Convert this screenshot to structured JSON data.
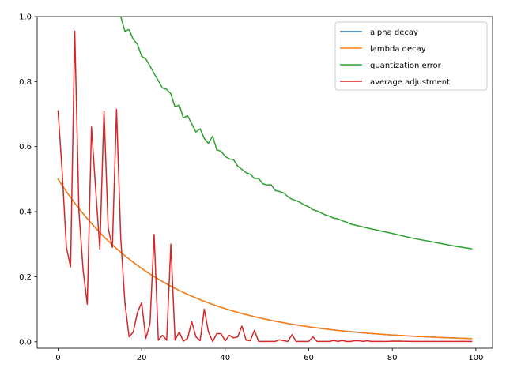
{
  "chart_data": {
    "type": "line",
    "title": "",
    "xlabel": "",
    "ylabel": "",
    "xlim": [
      -5,
      104
    ],
    "ylim": [
      -0.02,
      1.0
    ],
    "x_ticks": [
      0,
      20,
      40,
      60,
      80,
      100
    ],
    "y_ticks": [
      0.0,
      0.2,
      0.4,
      0.6,
      0.8,
      1.0
    ],
    "x_tick_labels": [
      "0",
      "20",
      "40",
      "60",
      "80",
      "100"
    ],
    "y_tick_labels": [
      "0.0",
      "0.2",
      "0.4",
      "0.6",
      "0.8",
      "1.0"
    ],
    "grid": false,
    "legend_position": "upper right",
    "series": [
      {
        "name": "alpha decay",
        "color": "#1f77b4",
        "generator": {
          "kind": "exponential",
          "start": 0.5,
          "rate": 0.961,
          "x_start": 0,
          "x_end": 99
        }
      },
      {
        "name": "lambda decay",
        "color": "#ff7f0e",
        "generator": {
          "kind": "exponential",
          "start": 0.5,
          "rate": 0.961,
          "x_start": 0,
          "x_end": 99
        }
      },
      {
        "name": "quantization error",
        "color": "#2ca02c",
        "x": [
          13,
          14,
          15,
          16,
          17,
          18,
          19,
          20,
          21,
          22,
          23,
          24,
          25,
          26,
          27,
          28,
          29,
          30,
          31,
          32,
          33,
          34,
          35,
          36,
          37,
          38,
          39,
          40,
          41,
          42,
          43,
          44,
          45,
          46,
          47,
          48,
          49,
          50,
          51,
          52,
          53,
          54,
          55,
          56,
          57,
          58,
          59,
          60,
          61,
          62,
          63,
          64,
          65,
          66,
          67,
          68,
          69,
          70,
          75,
          80,
          85,
          90,
          95,
          99
        ],
        "y": [
          1.08,
          1.04,
          1.0,
          0.955,
          0.96,
          0.93,
          0.915,
          0.878,
          0.87,
          0.848,
          0.825,
          0.803,
          0.78,
          0.776,
          0.762,
          0.722,
          0.728,
          0.688,
          0.695,
          0.67,
          0.645,
          0.655,
          0.625,
          0.61,
          0.632,
          0.59,
          0.586,
          0.57,
          0.562,
          0.56,
          0.54,
          0.53,
          0.52,
          0.515,
          0.502,
          0.502,
          0.486,
          0.482,
          0.483,
          0.465,
          0.462,
          0.458,
          0.446,
          0.438,
          0.434,
          0.428,
          0.42,
          0.415,
          0.406,
          0.402,
          0.396,
          0.39,
          0.386,
          0.38,
          0.378,
          0.372,
          0.368,
          0.362,
          0.347,
          0.333,
          0.318,
          0.306,
          0.294,
          0.286
        ]
      },
      {
        "name": "average adjustment",
        "color": "#d62728",
        "x": [
          0,
          1,
          2,
          3,
          4,
          5,
          6,
          7,
          8,
          9,
          10,
          11,
          12,
          13,
          14,
          15,
          16,
          17,
          18,
          19,
          20,
          21,
          22,
          23,
          24,
          25,
          26,
          27,
          28,
          29,
          30,
          31,
          32,
          33,
          34,
          35,
          36,
          37,
          38,
          39,
          40,
          41,
          42,
          43,
          44,
          45,
          46,
          47,
          48,
          49,
          50,
          51,
          52,
          53,
          54,
          55,
          56,
          57,
          58,
          59,
          60,
          61,
          62,
          63,
          64,
          65,
          66,
          67,
          68,
          69,
          70,
          71,
          72,
          73,
          74,
          75,
          76,
          77,
          78,
          79,
          80,
          85,
          90,
          95,
          99
        ],
        "y": [
          0.71,
          0.52,
          0.29,
          0.23,
          0.955,
          0.4,
          0.22,
          0.115,
          0.66,
          0.47,
          0.285,
          0.71,
          0.35,
          0.29,
          0.715,
          0.32,
          0.12,
          0.015,
          0.03,
          0.09,
          0.12,
          0.01,
          0.055,
          0.33,
          0.005,
          0.02,
          0.005,
          0.3,
          0.005,
          0.03,
          0.002,
          0.01,
          0.062,
          0.015,
          0.003,
          0.1,
          0.03,
          0.001,
          0.025,
          0.025,
          0.003,
          0.02,
          0.012,
          0.015,
          0.048,
          0.005,
          0.003,
          0.035,
          0.001,
          0.001,
          0.001,
          0.001,
          0.001,
          0.006,
          0.003,
          0.001,
          0.022,
          0.001,
          0.001,
          0.001,
          0.001,
          0.015,
          0.001,
          0.001,
          0.001,
          0.001,
          0.004,
          0.001,
          0.004,
          0.001,
          0.001,
          0.003,
          0.003,
          0.001,
          0.003,
          0.001,
          0.001,
          0.001,
          0.001,
          0.001,
          0.002,
          0.001,
          0.001,
          0.001,
          0.001
        ]
      }
    ]
  }
}
